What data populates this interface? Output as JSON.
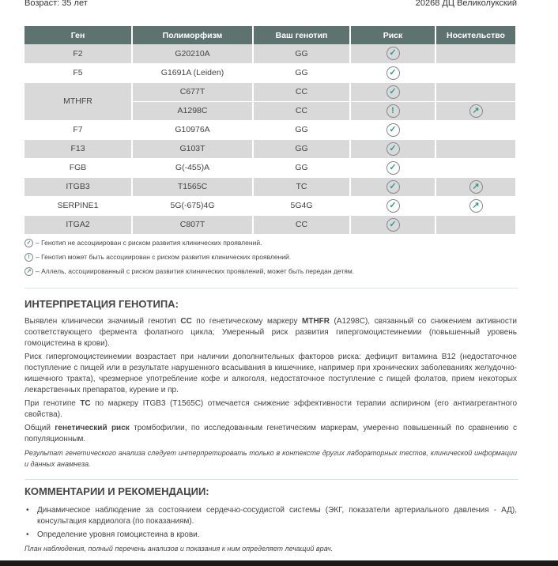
{
  "header": {
    "age": "Возраст: 35 лет",
    "center": "20268 ДЦ Великолукский"
  },
  "table": {
    "columns": [
      "Ген",
      "Полиморфизм",
      "Ваш генотип",
      "Риск",
      "Носительство"
    ],
    "rows": [
      {
        "gene": "F2",
        "poly": "G20210A",
        "genotype": "GG",
        "risk": "check",
        "carrier": ""
      },
      {
        "gene": "F5",
        "poly": "G1691A (Leiden)",
        "genotype": "GG",
        "risk": "check",
        "carrier": ""
      },
      {
        "gene": "MTHFR",
        "poly": "C677T",
        "genotype": "CC",
        "risk": "check",
        "carrier": ""
      },
      {
        "gene": "MTHFR",
        "poly": "A1298C",
        "genotype": "CC",
        "risk": "exclamation",
        "carrier": "arrow"
      },
      {
        "gene": "F7",
        "poly": "G10976A",
        "genotype": "GG",
        "risk": "check",
        "carrier": ""
      },
      {
        "gene": "F13",
        "poly": "G103T",
        "genotype": "GG",
        "risk": "check",
        "carrier": ""
      },
      {
        "gene": "FGB",
        "poly": "G(-455)A",
        "genotype": "GG",
        "risk": "check",
        "carrier": ""
      },
      {
        "gene": "ITGB3",
        "poly": "T1565C",
        "genotype": "TC",
        "risk": "check",
        "carrier": "arrow"
      },
      {
        "gene": "SERPINE1",
        "poly": "5G(-675)4G",
        "genotype": "5G4G",
        "risk": "check",
        "carrier": "arrow"
      },
      {
        "gene": "ITGA2",
        "poly": "C807T",
        "genotype": "CC",
        "risk": "check",
        "carrier": ""
      }
    ]
  },
  "legend": [
    "– Генотип не ассоциирован с риском развития клинических проявлений.",
    "– Генотип может быть ассоциирован с риском развития клинических проявлений.",
    "– Аллель, ассоциированный с риском развития клинических проявлений, может быть передан детям."
  ],
  "interpretation": {
    "title": "ИНТЕРПРЕТАЦИЯ ГЕНОТИПА:",
    "p1a": "Выявлен клинически значимый генотип ",
    "p1b": "CC",
    "p1c": " по генетическому маркеру ",
    "p1d": "MTHFR",
    "p1e": " (A1298C), связанный со снижением активности соответствующего фермента фолатного цикла; Умеренный риск развития гипергомоцистеинемии (повышенный уровень гомоцистеина в крови).",
    "p2": "Риск гипергомоцистеинемии возрастает при наличии дополнительных факторов риска: дефицит витамина B12 (недостаточное поступление с пищей или в результате нарушенного всасывания в кишечнике, например при хронических заболеваниях желудочно-кишечного тракта), чрезмерное употребление кофе и алкоголя, недостаточное поступление с пищей фолатов, прием некоторых лекарственных препаратов, курение и пр.",
    "p3a": "При генотипе ",
    "p3b": "TC",
    "p3c": " по маркеру ITGB3 (T1565C) отмечается снижение эффективности терапии аспирином (его антиагрегантного свойства).",
    "p4a": "Общий ",
    "p4b": "генетический риск",
    "p4c": " тромбофилии, по исследованным генетическим маркерам, умеренно повышенный по сравнению с популяционным.",
    "note": "Результат генетического анализа следует интерпретировать только в контексте других лабораторных тестов, клинической информации и данных анамнеза."
  },
  "comments": {
    "title": "КОММЕНТАРИИ И РЕКОМЕНДАЦИИ:",
    "items": [
      "Динамическое наблюдение за состоянием сердечно-сосудистой системы (ЭКГ, показатели артериального давления - АД), консультация кардиолога (по показаниям).",
      "Определение уровня гомоцистеина в крови."
    ],
    "note": "План наблюдения, полный перечень анализов и показания к ним определяет лечащий врач."
  }
}
